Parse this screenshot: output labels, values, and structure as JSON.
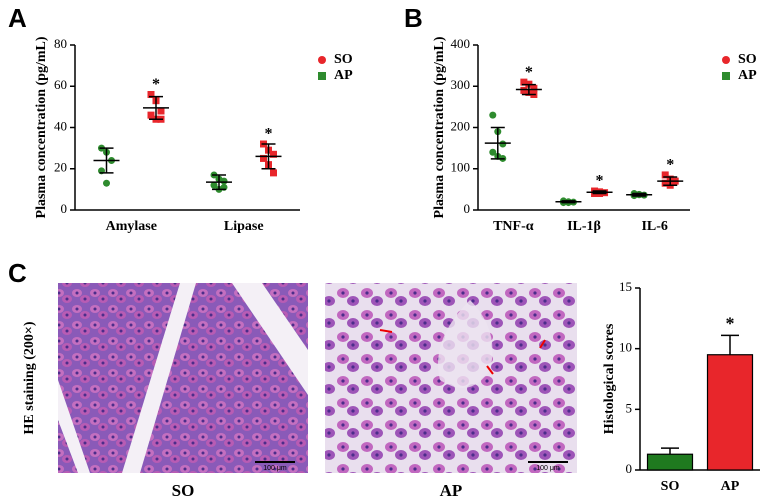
{
  "chart_data": [
    {
      "type": "dot",
      "panel_label": "A",
      "y_label": "Plasma concentration (pg/mL)",
      "categories": [
        "Amylase",
        "Lipase"
      ],
      "ylim": [
        0,
        80
      ],
      "yticks": [
        0,
        20,
        40,
        60,
        80
      ],
      "series": [
        {
          "name": "SO",
          "color": "#2e8b2e",
          "legend_color": "#e8262b",
          "marker": "circle",
          "points": [
            [
              30,
              28,
              24,
              19,
              13
            ],
            [
              17,
              15,
              14,
              12,
              10,
              11
            ]
          ],
          "mean": [
            24,
            13.5
          ],
          "sd": [
            6,
            3.5
          ]
        },
        {
          "name": "AP",
          "color": "#e8262b",
          "legend_color": "#2e8b2e",
          "marker": "square",
          "points": [
            [
              56,
              53,
              48,
              46,
              44,
              44
            ],
            [
              32,
              29,
              27,
              25,
              22,
              18
            ]
          ],
          "mean": [
            49.5,
            26
          ],
          "sd": [
            5.5,
            6
          ],
          "significance": [
            "*",
            "*"
          ]
        }
      ]
    },
    {
      "type": "dot",
      "panel_label": "B",
      "y_label": "Plasma concentration (pg/mL)",
      "categories": [
        "TNF-α",
        "IL-1β",
        "IL-6"
      ],
      "ylim": [
        0,
        400
      ],
      "yticks": [
        0,
        100,
        200,
        300,
        400
      ],
      "series": [
        {
          "name": "SO",
          "color": "#2e8b2e",
          "legend_color": "#e8262b",
          "marker": "circle",
          "points": [
            [
              230,
              190,
              160,
              140,
              130,
              125
            ],
            [
              22,
              20,
              19,
              18,
              18
            ],
            [
              40,
              38,
              36,
              35,
              37
            ]
          ],
          "mean": [
            162,
            20,
            37
          ],
          "sd": [
            38,
            2,
            3
          ]
        },
        {
          "name": "AP",
          "color": "#e8262b",
          "legend_color": "#2e8b2e",
          "marker": "square",
          "points": [
            [
              310,
              305,
              295,
              290,
              285,
              280
            ],
            [
              46,
              44,
              42,
              40,
              40
            ],
            [
              85,
              75,
              70,
              65,
              60
            ]
          ],
          "mean": [
            292,
            43,
            70
          ],
          "sd": [
            12,
            3,
            10
          ],
          "significance": [
            "*",
            "*",
            "*"
          ]
        }
      ]
    },
    {
      "type": "bar",
      "panel_label": "C",
      "y_label": "Histological scores",
      "categories": [
        "SO",
        "AP"
      ],
      "values": [
        1.3,
        9.5
      ],
      "errors": [
        0.5,
        1.6
      ],
      "colors": [
        "#1f7a1f",
        "#e8262b"
      ],
      "significance": [
        null,
        "*"
      ],
      "ylim": [
        0,
        15
      ],
      "yticks": [
        0,
        5,
        10,
        15
      ]
    }
  ],
  "histology": {
    "row_label": "HE staining (200×)",
    "images": [
      {
        "label": "SO",
        "scale_bar": "100 μm"
      },
      {
        "label": "AP",
        "scale_bar": "100 μm"
      }
    ]
  }
}
